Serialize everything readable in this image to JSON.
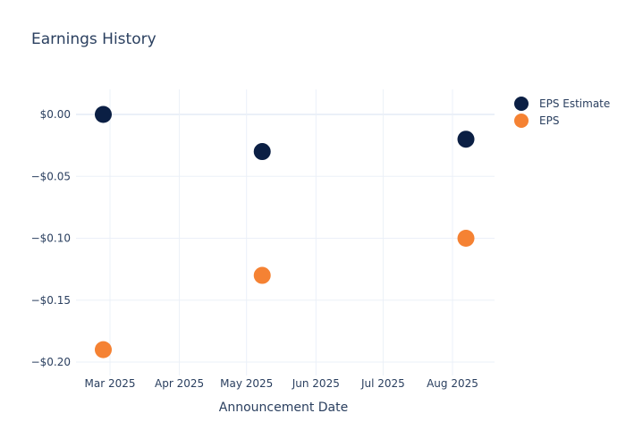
{
  "title": "Earnings History",
  "legend": {
    "items": [
      {
        "label": "EPS Estimate",
        "color": "#0b1f44"
      },
      {
        "label": "EPS",
        "color": "#f58233"
      }
    ]
  },
  "x_axis_title": "Announcement Date",
  "chart_data": {
    "type": "scatter",
    "title": "Earnings History",
    "xlabel": "Announcement Date",
    "ylabel": "",
    "x_tick_labels": [
      "Mar 2025",
      "Apr 2025",
      "May 2025",
      "Jun 2025",
      "Jul 2025",
      "Aug 2025"
    ],
    "y_tick_labels": [
      "$0.00",
      "−$0.05",
      "−$0.10",
      "−$0.15",
      "−$0.20"
    ],
    "y_ticks": [
      0.0,
      -0.05,
      -0.1,
      -0.15,
      -0.2
    ],
    "ylim": [
      -0.21,
      0.01
    ],
    "x": [
      "2025-02-26",
      "2025-05-08",
      "2025-08-07"
    ],
    "series": [
      {
        "name": "EPS Estimate",
        "color": "#0b1f44",
        "values": [
          0.0,
          -0.03,
          -0.02
        ]
      },
      {
        "name": "EPS",
        "color": "#f58233",
        "values": [
          -0.19,
          -0.13,
          -0.1
        ]
      }
    ],
    "grid": true,
    "legend_position": "right"
  }
}
